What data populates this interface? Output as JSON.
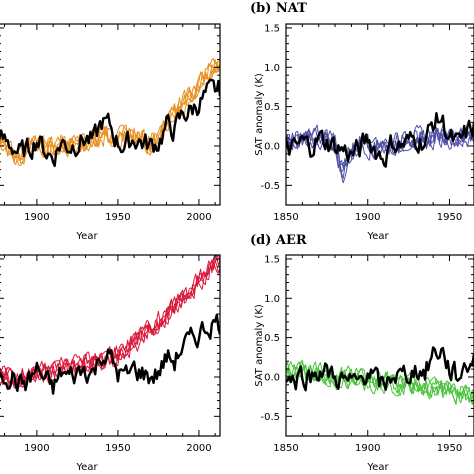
{
  "chart_data": [
    {
      "panel": "a",
      "type": "line",
      "title": "",
      "xlabel": "Year",
      "ylabel": "",
      "xlim": [
        1876,
        2013
      ],
      "ylim": [
        -0.75,
        1.55
      ],
      "xticks": [
        1900,
        1950,
        2000
      ],
      "yticks": [],
      "series": [
        {
          "color": "#e8901f",
          "ensemble": true,
          "x": [
            1876,
            1880,
            1885,
            1890,
            1895,
            1900,
            1905,
            1910,
            1915,
            1920,
            1925,
            1930,
            1935,
            1940,
            1945,
            1950,
            1955,
            1960,
            1965,
            1970,
            1975,
            1980,
            1985,
            1990,
            1995,
            2000,
            2005,
            2010
          ],
          "y": [
            0.06,
            0.02,
            -0.1,
            -0.12,
            -0.02,
            0.02,
            -0.02,
            -0.04,
            0.0,
            0.02,
            0.04,
            0.08,
            0.1,
            0.12,
            0.14,
            0.1,
            0.12,
            0.16,
            0.1,
            0.02,
            0.1,
            0.3,
            0.4,
            0.55,
            0.65,
            0.8,
            0.95,
            1.05
          ]
        },
        {
          "color": "#000000",
          "ensemble": false,
          "x": [
            1876,
            1880,
            1885,
            1890,
            1895,
            1900,
            1905,
            1910,
            1915,
            1920,
            1925,
            1930,
            1935,
            1940,
            1945,
            1950,
            1955,
            1960,
            1965,
            1970,
            1975,
            1980,
            1985,
            1990,
            1995,
            2000,
            2005,
            2010
          ],
          "y": [
            0.1,
            0.05,
            0.0,
            -0.1,
            -0.05,
            0.1,
            -0.05,
            -0.15,
            0.05,
            0.0,
            0.05,
            0.1,
            0.05,
            0.3,
            0.25,
            0.05,
            0.0,
            0.1,
            0.05,
            0.0,
            0.05,
            0.25,
            0.2,
            0.4,
            0.45,
            0.55,
            0.65,
            0.7
          ]
        }
      ]
    },
    {
      "panel": "b",
      "type": "line",
      "title": "(b) NAT",
      "xlabel": "Year",
      "ylabel": "SAT anomaly (K)",
      "xlim": [
        1850,
        1965
      ],
      "ylim": [
        -0.75,
        1.55
      ],
      "xticks": [
        1850,
        1900,
        1950
      ],
      "yticks": [
        -0.5,
        0.0,
        0.5,
        1.0,
        1.5
      ],
      "series": [
        {
          "color": "#5050a8",
          "ensemble": true,
          "x": [
            1850,
            1855,
            1860,
            1865,
            1870,
            1875,
            1880,
            1883,
            1885,
            1888,
            1890,
            1895,
            1900,
            1905,
            1910,
            1915,
            1920,
            1925,
            1930,
            1935,
            1940,
            1945,
            1950,
            1955,
            1960,
            1965
          ],
          "y": [
            0.05,
            0.1,
            0.08,
            0.1,
            0.12,
            0.1,
            0.05,
            -0.25,
            -0.35,
            -0.1,
            -0.05,
            0.05,
            0.0,
            -0.05,
            0.0,
            0.02,
            0.05,
            0.08,
            0.1,
            0.12,
            0.1,
            0.12,
            0.1,
            0.08,
            0.1,
            0.12
          ]
        },
        {
          "color": "#000000",
          "ensemble": false,
          "x": [
            1850,
            1855,
            1860,
            1865,
            1870,
            1875,
            1880,
            1885,
            1890,
            1895,
            1900,
            1905,
            1910,
            1915,
            1920,
            1925,
            1930,
            1935,
            1940,
            1945,
            1950,
            1955,
            1960,
            1965
          ],
          "y": [
            0.0,
            -0.05,
            0.05,
            0.0,
            0.1,
            0.05,
            0.0,
            -0.05,
            -0.1,
            -0.05,
            0.1,
            -0.05,
            -0.15,
            0.05,
            0.0,
            0.05,
            0.1,
            0.05,
            0.3,
            0.35,
            0.1,
            0.0,
            0.15,
            0.25
          ]
        }
      ]
    },
    {
      "panel": "c",
      "type": "line",
      "title": "",
      "xlabel": "Year",
      "ylabel": "",
      "xlim": [
        1876,
        2013
      ],
      "ylim": [
        -0.75,
        1.55
      ],
      "xticks": [
        1900,
        1950,
        2000
      ],
      "yticks": [],
      "series": [
        {
          "color": "#d81a3a",
          "ensemble": true,
          "x": [
            1876,
            1880,
            1885,
            1890,
            1895,
            1900,
            1905,
            1910,
            1915,
            1920,
            1925,
            1930,
            1935,
            1940,
            1945,
            1950,
            1955,
            1960,
            1965,
            1970,
            1975,
            1980,
            1985,
            1990,
            1995,
            2000,
            2005,
            2010
          ],
          "y": [
            0.02,
            0.0,
            -0.02,
            0.0,
            0.02,
            0.05,
            0.06,
            0.08,
            0.1,
            0.12,
            0.15,
            0.18,
            0.2,
            0.22,
            0.26,
            0.3,
            0.35,
            0.42,
            0.5,
            0.6,
            0.7,
            0.8,
            0.92,
            1.0,
            1.1,
            1.2,
            1.35,
            1.45
          ]
        },
        {
          "color": "#000000",
          "ensemble": false,
          "x": [
            1876,
            1880,
            1885,
            1890,
            1895,
            1900,
            1905,
            1910,
            1915,
            1920,
            1925,
            1930,
            1935,
            1940,
            1945,
            1950,
            1955,
            1960,
            1965,
            1970,
            1975,
            1980,
            1985,
            1990,
            1995,
            2000,
            2005,
            2010
          ],
          "y": [
            0.1,
            0.05,
            0.0,
            -0.1,
            -0.05,
            0.1,
            -0.05,
            -0.15,
            0.05,
            0.0,
            0.05,
            0.1,
            0.05,
            0.3,
            0.25,
            0.05,
            0.0,
            0.1,
            0.05,
            0.0,
            0.05,
            0.25,
            0.2,
            0.4,
            0.45,
            0.55,
            0.65,
            0.7
          ]
        }
      ]
    },
    {
      "panel": "d",
      "type": "line",
      "title": "(d) AER",
      "xlabel": "Year",
      "ylabel": "SAT anomaly (K)",
      "xlim": [
        1850,
        1965
      ],
      "ylim": [
        -0.75,
        1.55
      ],
      "xticks": [
        1850,
        1900,
        1950
      ],
      "yticks": [
        -0.5,
        0.0,
        0.5,
        1.0,
        1.5
      ],
      "series": [
        {
          "color": "#4cc23c",
          "ensemble": true,
          "x": [
            1850,
            1855,
            1860,
            1865,
            1870,
            1875,
            1880,
            1885,
            1890,
            1895,
            1900,
            1905,
            1910,
            1915,
            1920,
            1925,
            1930,
            1935,
            1940,
            1945,
            1950,
            1955,
            1960,
            1965
          ],
          "y": [
            0.08,
            0.05,
            0.08,
            0.05,
            0.04,
            0.02,
            0.0,
            0.0,
            -0.02,
            -0.02,
            -0.05,
            -0.05,
            -0.06,
            -0.08,
            -0.08,
            -0.1,
            -0.1,
            -0.12,
            -0.14,
            -0.15,
            -0.18,
            -0.2,
            -0.22,
            -0.25
          ]
        },
        {
          "color": "#000000",
          "ensemble": false,
          "x": [
            1850,
            1855,
            1860,
            1865,
            1870,
            1875,
            1880,
            1885,
            1890,
            1895,
            1900,
            1905,
            1910,
            1915,
            1920,
            1925,
            1930,
            1935,
            1940,
            1945,
            1950,
            1955,
            1960,
            1965
          ],
          "y": [
            0.0,
            -0.05,
            0.05,
            0.0,
            0.1,
            0.05,
            0.0,
            -0.05,
            -0.1,
            -0.05,
            0.1,
            -0.05,
            -0.15,
            0.05,
            0.0,
            0.05,
            0.1,
            0.05,
            0.3,
            0.35,
            0.1,
            0.0,
            0.15,
            0.25
          ]
        }
      ]
    }
  ]
}
